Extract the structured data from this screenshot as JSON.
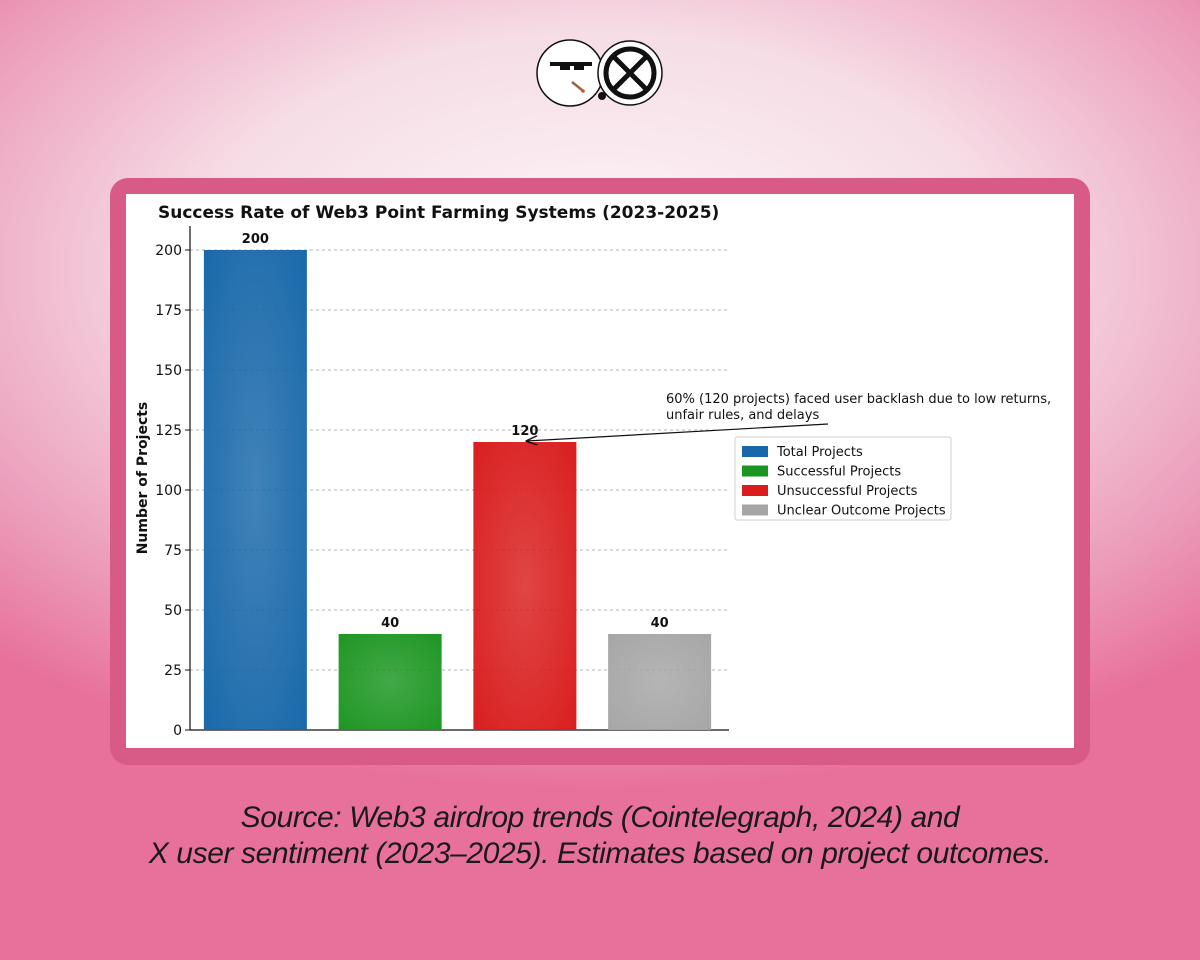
{
  "caption": {
    "line1": "Source: Web3 airdrop trends (Cointelegraph, 2024) and",
    "line2": "X user sentiment (2023–2025). Estimates based on project outcomes."
  },
  "logo": {
    "left_icon": "sunglasses-icon",
    "right_icon": "crossed-circle-icon"
  },
  "chart_data": {
    "type": "bar",
    "title": "Success Rate of Web3 Point Farming Systems (2023-2025)",
    "xlabel": "",
    "ylabel": "Number of Projects",
    "categories": [
      "Total Projects",
      "Successful Projects",
      "Unsuccessful Projects",
      "Unclear Outcome Projects"
    ],
    "values": [
      200,
      40,
      120,
      40
    ],
    "value_labels": [
      "200",
      "40",
      "120",
      "40"
    ],
    "colors": [
      "#1767a9",
      "#1a9520",
      "#d91c1c",
      "#a5a5a5"
    ],
    "ylim": [
      0,
      210
    ],
    "yticks": [
      0,
      25,
      50,
      75,
      100,
      125,
      150,
      175,
      200
    ],
    "grid": "horizontal dashed",
    "legend": {
      "placement": "right",
      "entries": [
        "Total Projects",
        "Successful Projects",
        "Unsuccessful Projects",
        "Unclear Outcome Projects"
      ]
    },
    "annotation": {
      "lines": [
        "60% (120 projects) faced user backlash due to low returns,",
        "unfair rules, and delays"
      ],
      "target_category": "Unsuccessful Projects",
      "target_value": 120
    }
  }
}
